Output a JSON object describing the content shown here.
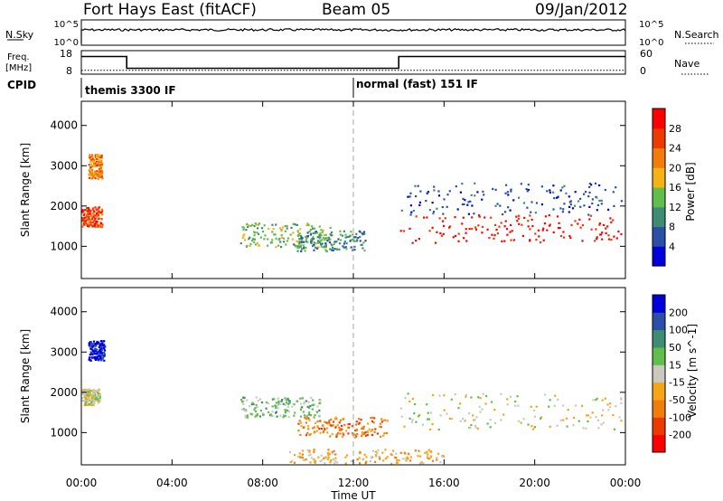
{
  "header": {
    "station": "Fort Hays East (fitACF)",
    "beam": "Beam 05",
    "date": "09/Jan/2012"
  },
  "noise_panel": {
    "left_label": "N.Sky",
    "right_label": "N.Search",
    "left_ticks": [
      "10^5",
      "10^0"
    ],
    "right_ticks": [
      "10^5",
      "10^0"
    ]
  },
  "freq_panel": {
    "left_label_line1": "Freq.",
    "left_label_line2": "[MHz]",
    "right_label": "Nave",
    "left_ticks": [
      "18",
      "8"
    ],
    "right_ticks": [
      "60",
      "0"
    ],
    "freq_steps": [
      {
        "from_hour": 0,
        "to_hour": 2,
        "mhz": 15.5
      },
      {
        "from_hour": 2,
        "to_hour": 14,
        "mhz": 10.5
      },
      {
        "from_hour": 14,
        "to_hour": 24,
        "mhz": 15.5
      }
    ],
    "nave_level": 10
  },
  "cpid": {
    "label": "CPID",
    "programs": [
      {
        "name": "themis 3300 IF",
        "from_hour": 0,
        "to_hour": 12
      },
      {
        "name": "normal (fast) 151 IF",
        "from_hour": 12,
        "to_hour": 24
      }
    ]
  },
  "chart_data": [
    {
      "type": "heatmap",
      "name": "power",
      "ylabel": "Slant Range [km]",
      "yticks": [
        "4000",
        "3000",
        "2000",
        "1000"
      ],
      "ylim": [
        200,
        4600
      ],
      "xlim_hours": [
        0,
        24
      ],
      "colorbar": {
        "label": "Power [dB]",
        "ticks": [
          "28",
          "24",
          "20",
          "16",
          "12",
          "8",
          "4"
        ],
        "colors": [
          "#0000dd",
          "#2b4fa8",
          "#3d8c73",
          "#5fbf4a",
          "#f5b316",
          "#f27d0a",
          "#ee3a00",
          "#ff0000"
        ]
      },
      "regions": [
        {
          "t0": 0.0,
          "t1": 0.9,
          "r0": 1500,
          "r1": 2000,
          "level": 6
        },
        {
          "t0": 0.3,
          "t1": 0.9,
          "r0": 2700,
          "r1": 3300,
          "level": 5
        },
        {
          "t0": 7.0,
          "t1": 11.0,
          "r0": 1000,
          "r1": 1600,
          "level": 3
        },
        {
          "t0": 9.5,
          "t1": 12.5,
          "r0": 900,
          "r1": 1400,
          "level": 2
        },
        {
          "t0": 14.0,
          "t1": 23.8,
          "r0": 1100,
          "r1": 1800,
          "level": 7
        },
        {
          "t0": 14.0,
          "t1": 23.8,
          "r0": 1800,
          "r1": 2600,
          "level": 1
        }
      ]
    },
    {
      "type": "heatmap",
      "name": "velocity",
      "ylabel": "Slant Range [km]",
      "yticks": [
        "4000",
        "3000",
        "2000",
        "1000"
      ],
      "ylim": [
        200,
        4600
      ],
      "xlim_hours": [
        0,
        24
      ],
      "colorbar": {
        "label": "Velocity [m s^-1]",
        "ticks": [
          "200",
          "100",
          "50",
          "15",
          "-15",
          "-50",
          "-100",
          "-200"
        ],
        "colors": [
          "#ff0000",
          "#ee3a00",
          "#f27d0a",
          "#f5a516",
          "#c9c9c0",
          "#5fbf4a",
          "#3d8c73",
          "#2b4fa8",
          "#0000dd"
        ]
      },
      "regions": [
        {
          "t0": 0.3,
          "t1": 1.0,
          "r0": 2800,
          "r1": 3300,
          "level": 8
        },
        {
          "t0": 0.0,
          "t1": 0.8,
          "r0": 1700,
          "r1": 2100,
          "level": 4
        },
        {
          "t0": 7.0,
          "t1": 10.5,
          "r0": 1400,
          "r1": 1900,
          "level": 5
        },
        {
          "t0": 9.5,
          "t1": 13.5,
          "r0": 900,
          "r1": 1400,
          "level": 2
        },
        {
          "t0": 14.0,
          "t1": 23.8,
          "r0": 1100,
          "r1": 2000,
          "level": 4
        },
        {
          "t0": 9.0,
          "t1": 16.0,
          "r0": 250,
          "r1": 600,
          "level": 3
        }
      ]
    }
  ],
  "x_axis": {
    "label": "Time UT",
    "ticks": [
      "00:00",
      "04:00",
      "08:00",
      "12:00",
      "16:00",
      "20:00",
      "00:00"
    ]
  }
}
